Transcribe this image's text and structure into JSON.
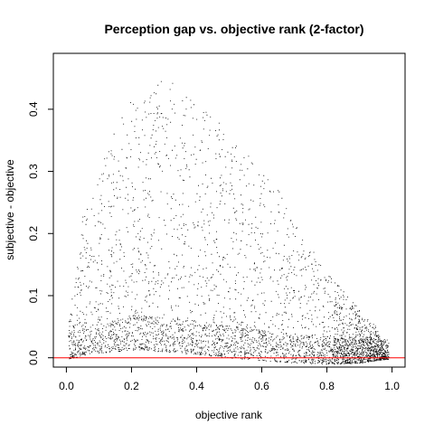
{
  "chart_data": {
    "type": "scatter",
    "title": "Perception gap vs. objective rank (2-factor)",
    "xlabel": "objective rank",
    "ylabel": "subjective - objective",
    "xlim": [
      -0.04,
      1.04
    ],
    "ylim": [
      -0.015,
      0.49
    ],
    "xticks": [
      "0.0",
      "0.2",
      "0.4",
      "0.6",
      "0.8",
      "1.0"
    ],
    "yticks": [
      "0.0",
      "0.1",
      "0.2",
      "0.3",
      "0.4"
    ],
    "grid": false,
    "legend": "none",
    "reference_line": {
      "y": 0,
      "color": "#ff0000"
    },
    "point_color": "#000000",
    "envelope_upper": [
      [
        0.0,
        0.03
      ],
      [
        0.05,
        0.23
      ],
      [
        0.1,
        0.3
      ],
      [
        0.15,
        0.37
      ],
      [
        0.2,
        0.42
      ],
      [
        0.25,
        0.44
      ],
      [
        0.3,
        0.46
      ],
      [
        0.35,
        0.43
      ],
      [
        0.4,
        0.41
      ],
      [
        0.45,
        0.39
      ],
      [
        0.5,
        0.36
      ],
      [
        0.55,
        0.33
      ],
      [
        0.6,
        0.3
      ],
      [
        0.65,
        0.27
      ],
      [
        0.7,
        0.22
      ],
      [
        0.75,
        0.18
      ],
      [
        0.8,
        0.14
      ],
      [
        0.85,
        0.11
      ],
      [
        0.9,
        0.08
      ],
      [
        0.95,
        0.05
      ],
      [
        0.98,
        0.01
      ]
    ],
    "envelope_lower": [
      [
        0.0,
        -0.002
      ],
      [
        0.1,
        0.008
      ],
      [
        0.2,
        0.013
      ],
      [
        0.3,
        0.01
      ],
      [
        0.4,
        0.006
      ],
      [
        0.5,
        0.0
      ],
      [
        0.6,
        -0.004
      ],
      [
        0.7,
        -0.008
      ],
      [
        0.8,
        -0.01
      ],
      [
        0.9,
        -0.008
      ],
      [
        0.98,
        -0.002
      ]
    ],
    "band_center": [
      [
        0.0,
        0.02
      ],
      [
        0.2,
        0.05
      ],
      [
        0.4,
        0.04
      ],
      [
        0.6,
        0.025
      ],
      [
        0.8,
        0.015
      ],
      [
        0.95,
        0.01
      ]
    ],
    "approx_point_count": 9000
  }
}
